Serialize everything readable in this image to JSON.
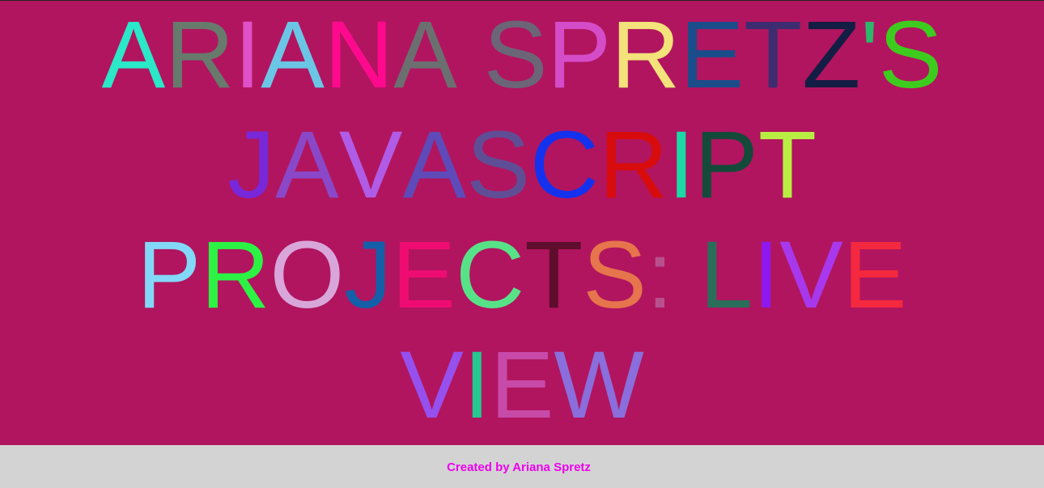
{
  "title": {
    "text": "ARIANA SPRETZ'S JAVASCRIPT PROJECTS: LIVE VIEW",
    "lines": [
      {
        "chars": [
          {
            "c": "A",
            "color": "#2ae8c8"
          },
          {
            "c": "R",
            "color": "#677a6c"
          },
          {
            "c": "I",
            "color": "#e050c8"
          },
          {
            "c": "A",
            "color": "#6bc6e6"
          },
          {
            "c": "N",
            "color": "#ff0a8e"
          },
          {
            "c": "A",
            "color": "#6c6f70"
          },
          {
            "c": " ",
            "color": "#000000"
          },
          {
            "c": "S",
            "color": "#6b6577"
          },
          {
            "c": "P",
            "color": "#d54cc8"
          },
          {
            "c": "R",
            "color": "#f4e27a"
          },
          {
            "c": "E",
            "color": "#1a4d8a"
          },
          {
            "c": "T",
            "color": "#3d2d70"
          },
          {
            "c": "Z",
            "color": "#141d44"
          },
          {
            "c": "'",
            "color": "#2cb86a"
          },
          {
            "c": "S",
            "color": "#3dcc1e"
          }
        ]
      },
      {
        "chars": [
          {
            "c": "J",
            "color": "#7828d8"
          },
          {
            "c": "A",
            "color": "#8a48c8"
          },
          {
            "c": "V",
            "color": "#b05ce6"
          },
          {
            "c": "A",
            "color": "#5e4ab8"
          },
          {
            "c": "S",
            "color": "#5f4e96"
          },
          {
            "c": "C",
            "color": "#1432ee"
          },
          {
            "c": "R",
            "color": "#d80c0c"
          },
          {
            "c": "I",
            "color": "#1cd8a6"
          },
          {
            "c": "P",
            "color": "#134a3a"
          },
          {
            "c": "T",
            "color": "#b8ee44"
          }
        ]
      },
      {
        "chars": [
          {
            "c": "P",
            "color": "#82d8f6"
          },
          {
            "c": "R",
            "color": "#2cf244"
          },
          {
            "c": "O",
            "color": "#d9a6da"
          },
          {
            "c": "J",
            "color": "#155ea8"
          },
          {
            "c": "E",
            "color": "#ee0c72"
          },
          {
            "c": "C",
            "color": "#58e288"
          },
          {
            "c": "T",
            "color": "#5e0d2c"
          },
          {
            "c": "S",
            "color": "#e6744c"
          },
          {
            "c": ":",
            "color": "#b8508e"
          },
          {
            "c": " ",
            "color": "#000000"
          },
          {
            "c": "L",
            "color": "#2a6e5a"
          },
          {
            "c": "I",
            "color": "#8e18ee"
          },
          {
            "c": "V",
            "color": "#a838ee"
          },
          {
            "c": "E",
            "color": "#f4283e"
          }
        ]
      },
      {
        "chars": [
          {
            "c": "V",
            "color": "#9650ee"
          },
          {
            "c": "I",
            "color": "#24c890"
          },
          {
            "c": "E",
            "color": "#c84aa8"
          },
          {
            "c": "W",
            "color": "#8a6edc"
          }
        ]
      }
    ]
  },
  "footer": {
    "credit": "Created by Ariana Spretz",
    "background": "#d3d3d3",
    "text_color": "#ee00ee"
  },
  "page_background": "#b1155f"
}
